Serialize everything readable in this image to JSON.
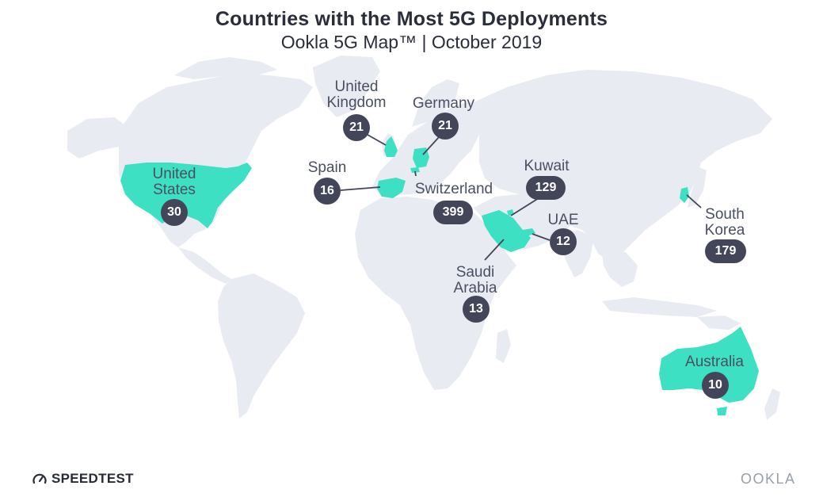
{
  "title": "Countries with the Most 5G Deployments",
  "subtitle": "Ookla 5G Map™ | October 2019",
  "colors": {
    "land": "#e9ebf2",
    "highlight": "#3ee0c3",
    "badge": "#434659",
    "label": "#4a5062"
  },
  "countries": {
    "us": {
      "name_line1": "United",
      "name_line2": "States",
      "count": "30"
    },
    "uk": {
      "name_line1": "United",
      "name_line2": "Kingdom",
      "count": "21"
    },
    "germany": {
      "name": "Germany",
      "count": "21"
    },
    "spain": {
      "name": "Spain",
      "count": "16"
    },
    "switzerland": {
      "name": "Switzerland",
      "count": "399"
    },
    "kuwait": {
      "name": "Kuwait",
      "count": "129"
    },
    "uae": {
      "name": "UAE",
      "count": "12"
    },
    "saudi": {
      "name_line1": "Saudi",
      "name_line2": "Arabia",
      "count": "13"
    },
    "korea": {
      "name_line1": "South",
      "name_line2": "Korea",
      "count": "179"
    },
    "australia": {
      "name": "Australia",
      "count": "10"
    }
  },
  "footer": {
    "left_brand": "SPEEDTEST",
    "left_icon": "speedometer-icon",
    "right_brand": "OOKLA"
  }
}
